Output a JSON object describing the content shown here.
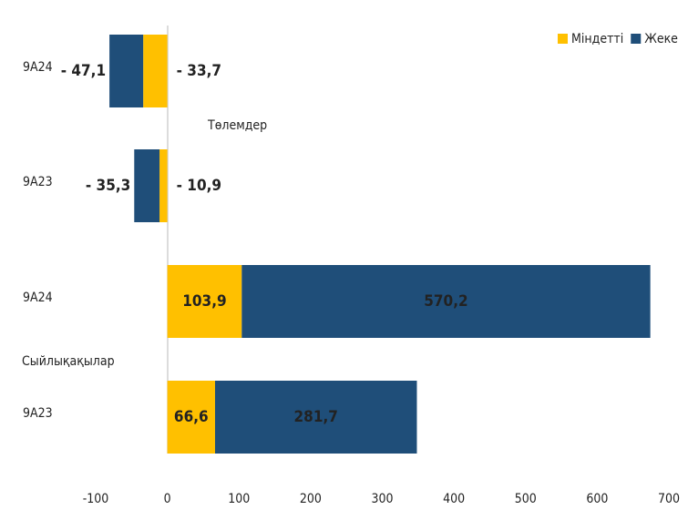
{
  "chart_data": {
    "type": "bar",
    "orientation": "horizontal",
    "stacked": true,
    "categories": [
      "9А24",
      "9А23",
      "9А24",
      "9А23"
    ],
    "series": [
      {
        "name": "Міндетті",
        "color": "#FFC000",
        "values": [
          -33.7,
          -10.9,
          103.9,
          66.6
        ],
        "value_labels": [
          "- 33,7",
          "- 10,9",
          "103,9",
          "66,6"
        ]
      },
      {
        "name": "Жеке",
        "color": "#1F4E79",
        "values": [
          -47.1,
          -35.3,
          570.2,
          281.7
        ],
        "value_labels": [
          "- 47,1",
          "- 35,3",
          "570,2",
          "281,7"
        ]
      }
    ],
    "annotations": [
      "Төлемдер",
      "Сыйлықақылар"
    ],
    "xlim": [
      -100,
      700
    ],
    "xticks": [
      -100,
      0,
      100,
      200,
      300,
      400,
      500,
      600,
      700
    ],
    "legend": "top-right",
    "grid": false
  }
}
